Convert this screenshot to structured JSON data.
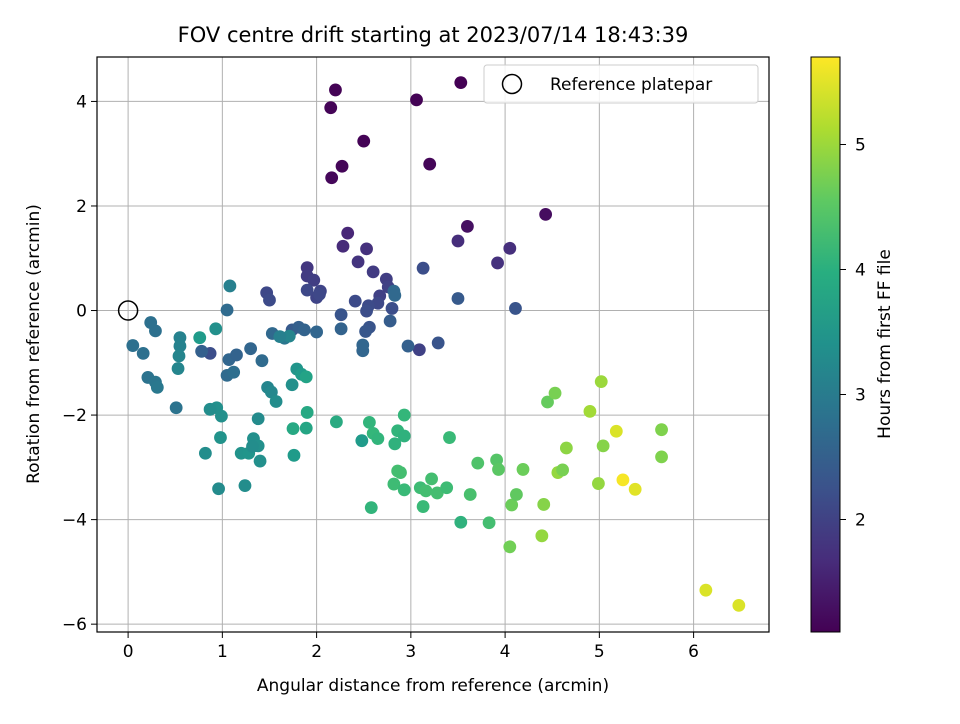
{
  "chart_data": {
    "type": "scatter",
    "title": "FOV centre drift starting at 2023/07/14 18:43:39",
    "xlabel": "Angular distance from reference (arcmin)",
    "ylabel": "Rotation from reference (arcmin)",
    "xlim": [
      -0.33,
      6.8
    ],
    "ylim": [
      -6.15,
      4.85
    ],
    "xticks": [
      0,
      1,
      2,
      3,
      4,
      5,
      6
    ],
    "yticks": [
      -6,
      -4,
      -2,
      0,
      2,
      4
    ],
    "grid": true,
    "legend": {
      "position": "top-right",
      "entries": [
        "Reference platepar"
      ]
    },
    "reference_point": {
      "x": 0,
      "y": 0,
      "label": "Reference platepar"
    },
    "colorbar": {
      "label": "Hours from first FF file",
      "range": [
        1.1,
        5.7
      ],
      "ticks": [
        2,
        3,
        4,
        5
      ],
      "colormap": "viridis"
    },
    "points": [
      [
        3.53,
        4.36,
        1.1
      ],
      [
        2.2,
        4.22,
        1.12
      ],
      [
        2.15,
        3.88,
        1.14
      ],
      [
        3.06,
        4.03,
        1.12
      ],
      [
        2.5,
        3.24,
        1.13
      ],
      [
        2.27,
        2.76,
        1.15
      ],
      [
        3.2,
        2.8,
        1.16
      ],
      [
        2.16,
        2.54,
        1.18
      ],
      [
        3.6,
        1.61,
        1.3
      ],
      [
        4.43,
        1.84,
        1.25
      ],
      [
        2.33,
        1.48,
        1.6
      ],
      [
        2.28,
        1.23,
        1.65
      ],
      [
        2.53,
        1.18,
        1.75
      ],
      [
        3.5,
        1.33,
        1.7
      ],
      [
        4.05,
        1.19,
        1.72
      ],
      [
        3.92,
        0.91,
        1.75
      ],
      [
        2.44,
        0.93,
        1.8
      ],
      [
        2.6,
        0.74,
        1.9
      ],
      [
        1.9,
        0.82,
        1.85
      ],
      [
        2.74,
        0.6,
        1.95
      ],
      [
        1.9,
        0.66,
        1.9
      ],
      [
        1.97,
        0.58,
        1.95
      ],
      [
        2.76,
        0.45,
        2.0
      ],
      [
        2.67,
        0.28,
        2.0
      ],
      [
        2.0,
        0.25,
        2.05
      ],
      [
        2.04,
        0.37,
        2.05
      ],
      [
        2.03,
        0.31,
        2.1
      ],
      [
        1.9,
        0.39,
        2.1
      ],
      [
        2.65,
        0.14,
        2.1
      ],
      [
        2.41,
        0.18,
        2.15
      ],
      [
        2.55,
        0.09,
        2.15
      ],
      [
        2.8,
        0.04,
        2.2
      ],
      [
        2.53,
        -0.01,
        2.2
      ],
      [
        3.13,
        0.81,
        2.2
      ],
      [
        2.82,
        0.37,
        2.65
      ],
      [
        2.83,
        0.29,
        2.65
      ],
      [
        4.11,
        0.04,
        2.3
      ],
      [
        3.5,
        0.23,
        2.4
      ],
      [
        2.26,
        -0.08,
        2.3
      ],
      [
        2.56,
        -0.32,
        2.3
      ],
      [
        2.52,
        -0.4,
        2.35
      ],
      [
        2.78,
        -0.2,
        2.45
      ],
      [
        2.26,
        -0.35,
        2.55
      ],
      [
        3.09,
        -0.75,
        2.0
      ],
      [
        3.29,
        -0.62,
        2.3
      ],
      [
        2.97,
        -0.68,
        2.5
      ],
      [
        2.49,
        -0.66,
        2.6
      ],
      [
        2.49,
        -0.77,
        2.6
      ],
      [
        1.47,
        0.34,
        2.1
      ],
      [
        1.5,
        0.2,
        2.15
      ],
      [
        1.74,
        -0.37,
        2.4
      ],
      [
        1.81,
        -0.32,
        2.5
      ],
      [
        1.87,
        -0.37,
        2.55
      ],
      [
        2.0,
        -0.41,
        2.6
      ],
      [
        1.53,
        -0.44,
        2.65
      ],
      [
        1.66,
        -0.53,
        2.9
      ],
      [
        1.71,
        -0.49,
        3.2
      ],
      [
        1.61,
        -0.5,
        3.1
      ],
      [
        0.87,
        -0.82,
        2.2
      ],
      [
        0.78,
        -0.78,
        2.5
      ],
      [
        1.07,
        -0.94,
        2.6
      ],
      [
        1.15,
        -0.85,
        2.55
      ],
      [
        1.3,
        -0.73,
        2.6
      ],
      [
        1.42,
        -0.96,
        2.7
      ],
      [
        1.05,
        -1.24,
        2.7
      ],
      [
        1.12,
        -1.18,
        2.75
      ],
      [
        1.05,
        0.01,
        2.7
      ],
      [
        1.08,
        0.47,
        3.1
      ],
      [
        0.93,
        -0.35,
        3.4
      ],
      [
        0.76,
        -0.52,
        3.6
      ],
      [
        0.55,
        -0.52,
        3.15
      ],
      [
        0.55,
        -0.68,
        3.15
      ],
      [
        0.54,
        -0.87,
        3.2
      ],
      [
        0.53,
        -1.11,
        3.2
      ],
      [
        0.24,
        -0.23,
        2.8
      ],
      [
        0.29,
        -0.39,
        2.8
      ],
      [
        0.05,
        -0.67,
        2.8
      ],
      [
        0.16,
        -0.82,
        2.8
      ],
      [
        0.21,
        -1.28,
        2.85
      ],
      [
        0.29,
        -1.37,
        2.9
      ],
      [
        0.31,
        -1.47,
        2.95
      ],
      [
        0.51,
        -1.86,
        2.85
      ],
      [
        1.79,
        -1.12,
        3.5
      ],
      [
        1.84,
        -1.22,
        3.6
      ],
      [
        1.89,
        -1.27,
        3.75
      ],
      [
        1.74,
        -1.42,
        3.4
      ],
      [
        1.48,
        -1.47,
        3.2
      ],
      [
        1.52,
        -1.56,
        3.25
      ],
      [
        1.57,
        -1.74,
        3.35
      ],
      [
        0.94,
        -1.86,
        3.4
      ],
      [
        0.87,
        -1.89,
        3.35
      ],
      [
        0.99,
        -2.02,
        3.4
      ],
      [
        1.38,
        -2.07,
        3.3
      ],
      [
        1.9,
        -1.95,
        3.85
      ],
      [
        2.21,
        -2.13,
        3.9
      ],
      [
        1.89,
        -2.25,
        3.8
      ],
      [
        1.75,
        -2.26,
        3.85
      ],
      [
        1.76,
        -2.77,
        3.6
      ],
      [
        0.98,
        -2.43,
        3.45
      ],
      [
        1.2,
        -2.73,
        3.45
      ],
      [
        1.28,
        -2.73,
        3.5
      ],
      [
        1.33,
        -2.45,
        3.4
      ],
      [
        1.38,
        -2.59,
        3.4
      ],
      [
        1.32,
        -2.6,
        3.35
      ],
      [
        1.4,
        -2.88,
        3.4
      ],
      [
        0.82,
        -2.73,
        3.35
      ],
      [
        0.96,
        -3.41,
        3.3
      ],
      [
        1.24,
        -3.35,
        3.35
      ],
      [
        2.48,
        -2.49,
        3.6
      ],
      [
        2.56,
        -2.14,
        4.1
      ],
      [
        2.6,
        -2.35,
        4.15
      ],
      [
        2.65,
        -2.45,
        4.1
      ],
      [
        2.86,
        -2.3,
        4.1
      ],
      [
        2.93,
        -2.4,
        4.05
      ],
      [
        2.93,
        -2.0,
        4.15
      ],
      [
        2.83,
        -2.55,
        4.05
      ],
      [
        2.58,
        -3.77,
        4.1
      ],
      [
        2.82,
        -3.32,
        4.25
      ],
      [
        2.86,
        -3.07,
        4.3
      ],
      [
        2.89,
        -3.1,
        4.3
      ],
      [
        2.93,
        -3.43,
        4.2
      ],
      [
        3.1,
        -3.39,
        4.25
      ],
      [
        3.13,
        -3.75,
        4.2
      ],
      [
        3.16,
        -3.45,
        4.3
      ],
      [
        3.22,
        -3.22,
        4.3
      ],
      [
        3.28,
        -3.49,
        4.3
      ],
      [
        3.38,
        -3.39,
        4.25
      ],
      [
        3.41,
        -2.43,
        4.2
      ],
      [
        3.53,
        -4.05,
        4.05
      ],
      [
        3.63,
        -3.52,
        4.35
      ],
      [
        3.71,
        -2.92,
        4.4
      ],
      [
        3.83,
        -4.06,
        4.3
      ],
      [
        3.91,
        -2.86,
        4.45
      ],
      [
        3.93,
        -3.04,
        4.5
      ],
      [
        4.05,
        -4.52,
        4.7
      ],
      [
        4.07,
        -3.72,
        4.65
      ],
      [
        4.12,
        -3.52,
        4.55
      ],
      [
        4.19,
        -3.04,
        4.65
      ],
      [
        4.39,
        -4.31,
        4.95
      ],
      [
        4.41,
        -3.71,
        4.85
      ],
      [
        4.45,
        -1.75,
        4.6
      ],
      [
        4.53,
        -1.58,
        4.75
      ],
      [
        4.56,
        -3.1,
        4.95
      ],
      [
        4.61,
        -3.05,
        4.75
      ],
      [
        4.65,
        -2.63,
        4.9
      ],
      [
        4.9,
        -1.93,
        5.05
      ],
      [
        4.99,
        -3.31,
        4.95
      ],
      [
        5.02,
        -1.36,
        5.0
      ],
      [
        5.04,
        -2.59,
        4.85
      ],
      [
        5.18,
        -2.31,
        5.45
      ],
      [
        5.25,
        -3.24,
        5.65
      ],
      [
        5.38,
        -3.42,
        5.5
      ],
      [
        5.66,
        -2.28,
        4.8
      ],
      [
        5.66,
        -2.8,
        4.8
      ],
      [
        6.13,
        -5.35,
        5.45
      ],
      [
        6.48,
        -5.64,
        5.45
      ]
    ]
  }
}
